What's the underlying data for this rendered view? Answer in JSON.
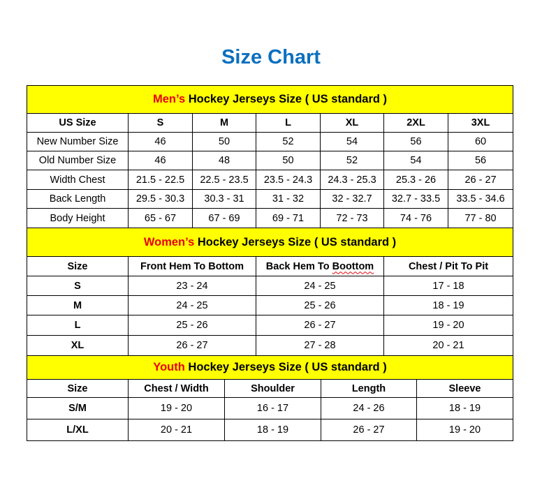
{
  "title": "Size Chart",
  "colors": {
    "title": "#0b70bf",
    "header_bg": "#ffff00",
    "highlight": "#e8000b"
  },
  "mens": {
    "highlight": "Men’s",
    "heading": " Hockey Jerseys Size ( US standard )",
    "columns": [
      "US Size",
      "S",
      "M",
      "L",
      "XL",
      "2XL",
      "3XL"
    ],
    "rows": [
      [
        "New Number Size",
        "46",
        "50",
        "52",
        "54",
        "56",
        "60"
      ],
      [
        "Old Number Size",
        "46",
        "48",
        "50",
        "52",
        "54",
        "56"
      ],
      [
        "Width Chest",
        "21.5 - 22.5",
        "22.5 - 23.5",
        "23.5 - 24.3",
        "24.3 - 25.3",
        "25.3 - 26",
        "26 - 27"
      ],
      [
        "Back Length",
        "29.5 - 30.3",
        "30.3 - 31",
        "31 - 32",
        "32 - 32.7",
        "32.7 - 33.5",
        "33.5 - 34.6"
      ],
      [
        "Body Height",
        "65 - 67",
        "67 - 69",
        "69 - 71",
        "72 - 73",
        "74 - 76",
        "77 - 80"
      ]
    ]
  },
  "womens": {
    "highlight": "Women’s",
    "heading": " Hockey Jerseys Size ( US standard )",
    "columns": [
      "Size",
      "Front Hem To Bottom",
      "Back Hem To Boottom",
      "Chest / Pit To Pit"
    ],
    "rows": [
      [
        "S",
        "23 - 24",
        "24 - 25",
        "17 - 18"
      ],
      [
        "M",
        "24 - 25",
        "25 - 26",
        "18 - 19"
      ],
      [
        "L",
        "25 - 26",
        "26 - 27",
        "19 - 20"
      ],
      [
        "XL",
        "26 - 27",
        "27 - 28",
        "20 - 21"
      ]
    ]
  },
  "youth": {
    "highlight": "Youth",
    "heading": " Hockey Jerseys Size ( US standard )",
    "columns": [
      "Size",
      "Chest / Width",
      "Shoulder",
      "Length",
      "Sleeve"
    ],
    "rows": [
      [
        "S/M",
        "19 - 20",
        "16 - 17",
        "24 - 26",
        "18 - 19"
      ],
      [
        "L/XL",
        "20 - 21",
        "18 - 19",
        "26 - 27",
        "19 - 20"
      ]
    ]
  }
}
